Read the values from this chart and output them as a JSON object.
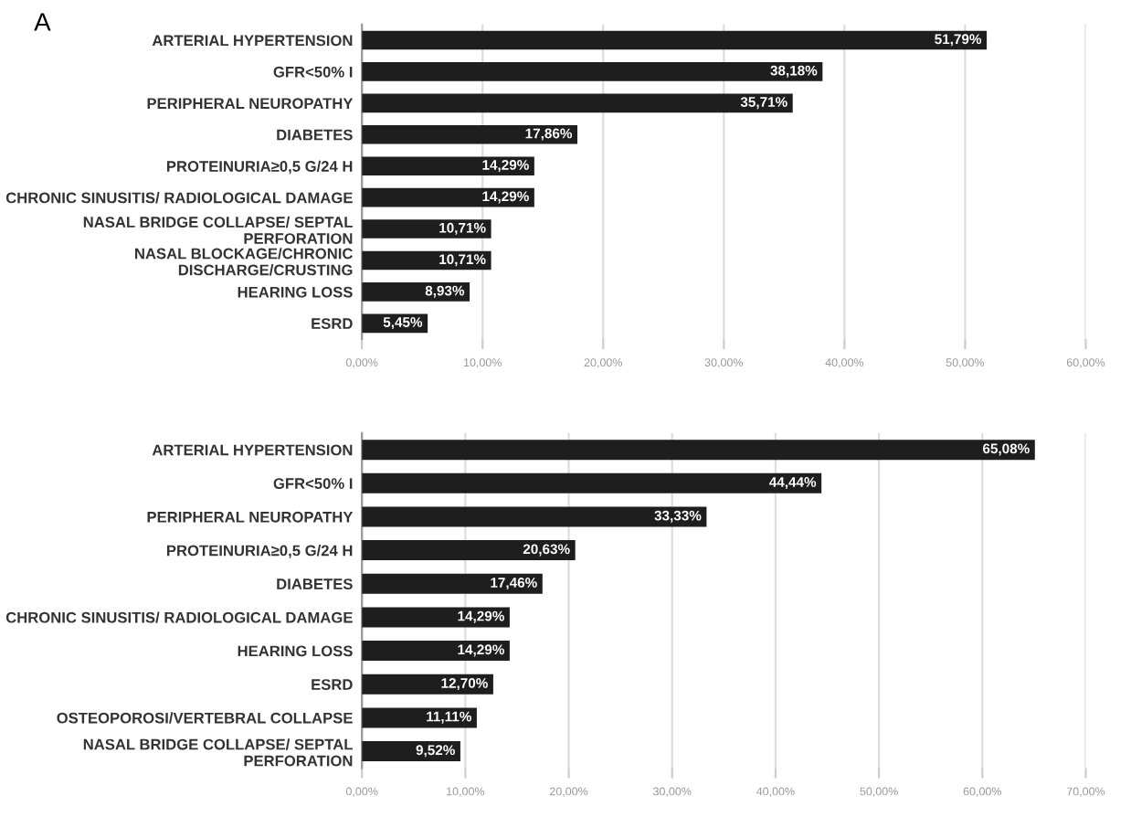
{
  "chart_data": [
    {
      "type": "bar",
      "orientation": "horizontal",
      "annotations": [
        "A"
      ],
      "categories": [
        "ARTERIAL HYPERTENSION",
        "GFR<50% I",
        "PERIPHERAL NEUROPATHY",
        "DIABETES",
        "PROTEINURIA≥0,5 G/24 H",
        "CHRONIC SINUSITIS/ RADIOLOGICAL DAMAGE",
        "NASAL BRIDGE COLLAPSE/ SEPTAL\nPERFORATION",
        "NASAL BLOCKAGE/CHRONIC\nDISCHARGE/CRUSTING",
        "HEARING LOSS",
        "ESRD"
      ],
      "values": [
        51.79,
        38.18,
        35.71,
        17.86,
        14.29,
        14.29,
        10.71,
        10.71,
        8.93,
        5.45
      ],
      "value_labels": [
        "51,79%",
        "38,18%",
        "35,71%",
        "17,86%",
        "14,29%",
        "14,29%",
        "10,71%",
        "10,71%",
        "8,93%",
        "5,45%"
      ],
      "color": "#1e1e1e",
      "xlim": [
        0,
        60
      ],
      "xticks": [
        {
          "value": 0,
          "label": "0,00%"
        },
        {
          "value": 10,
          "label": "10,00%"
        },
        {
          "value": 20,
          "label": "20,00%"
        },
        {
          "value": 30,
          "label": "30,00%"
        },
        {
          "value": 40,
          "label": "40,00%"
        },
        {
          "value": 50,
          "label": "50,00%"
        },
        {
          "value": 60,
          "label": "60,00%"
        }
      ],
      "grid": "x"
    },
    {
      "type": "bar",
      "orientation": "horizontal",
      "categories": [
        "ARTERIAL HYPERTENSION",
        "GFR<50% I",
        "PERIPHERAL NEUROPATHY",
        "PROTEINURIA≥0,5 G/24 H",
        "DIABETES",
        "CHRONIC SINUSITIS/ RADIOLOGICAL DAMAGE",
        "HEARING LOSS",
        "ESRD",
        "OSTEOPOROSI/VERTEBRAL COLLAPSE",
        "NASAL BRIDGE COLLAPSE/ SEPTAL\nPERFORATION"
      ],
      "values": [
        65.08,
        44.44,
        33.33,
        20.63,
        17.46,
        14.29,
        14.29,
        12.7,
        11.11,
        9.52
      ],
      "value_labels": [
        "65,08%",
        "44,44%",
        "33,33%",
        "20,63%",
        "17,46%",
        "14,29%",
        "14,29%",
        "12,70%",
        "11,11%",
        "9,52%"
      ],
      "color": "#1e1e1e",
      "xlim": [
        0,
        70
      ],
      "xticks": [
        {
          "value": 0,
          "label": "0,00%"
        },
        {
          "value": 10,
          "label": "10,00%"
        },
        {
          "value": 20,
          "label": "20,00%"
        },
        {
          "value": 30,
          "label": "30,00%"
        },
        {
          "value": 40,
          "label": "40,00%"
        },
        {
          "value": 50,
          "label": "50,00%"
        },
        {
          "value": 60,
          "label": "60,00%"
        },
        {
          "value": 70,
          "label": "70,00%"
        }
      ],
      "grid": "x"
    }
  ]
}
